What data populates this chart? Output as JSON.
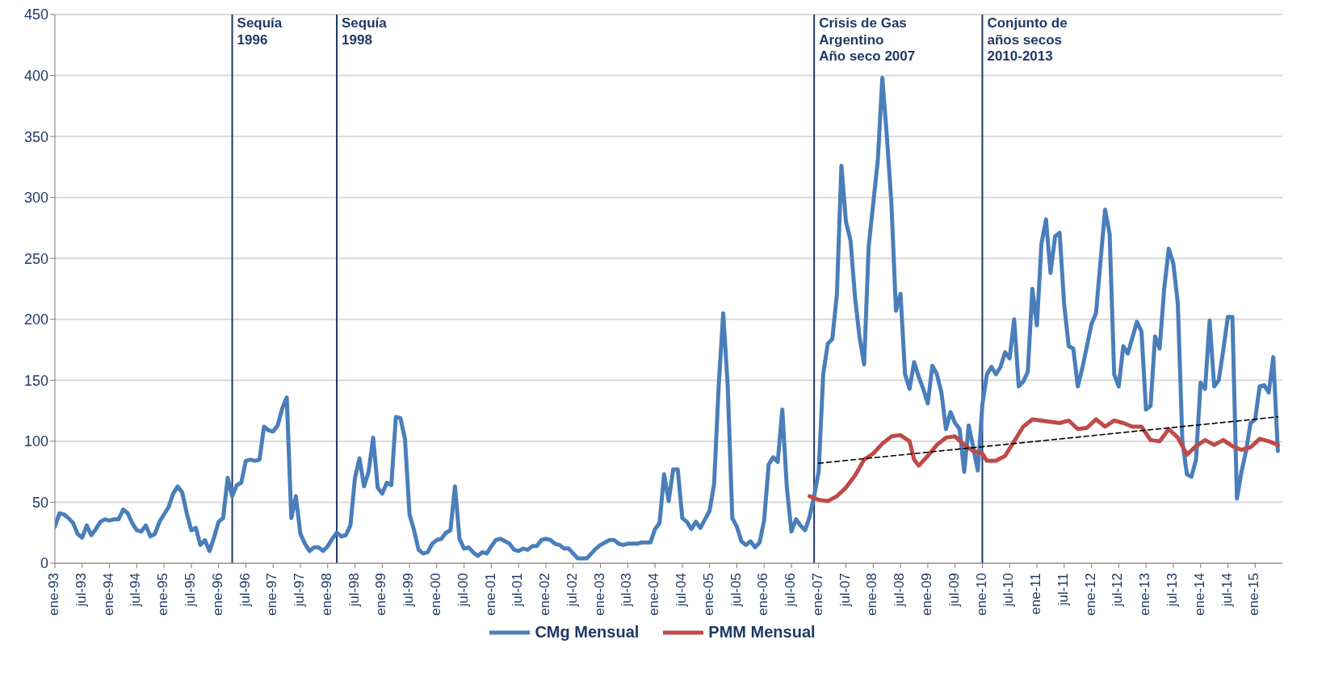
{
  "chart_data": {
    "type": "line",
    "ylim": [
      0,
      450
    ],
    "yticks": [
      0,
      50,
      100,
      150,
      200,
      250,
      300,
      350,
      400,
      450
    ],
    "xlim": [
      "1993-01",
      "2015-07"
    ],
    "xticks": [
      {
        "value": "1993-01",
        "label": "ene-93"
      },
      {
        "value": "1993-07",
        "label": "jul-93"
      },
      {
        "value": "1994-01",
        "label": "ene-94"
      },
      {
        "value": "1994-07",
        "label": "jul-94"
      },
      {
        "value": "1995-01",
        "label": "ene-95"
      },
      {
        "value": "1995-07",
        "label": "jul-95"
      },
      {
        "value": "1996-01",
        "label": "ene-96"
      },
      {
        "value": "1996-07",
        "label": "jul-96"
      },
      {
        "value": "1997-01",
        "label": "ene-97"
      },
      {
        "value": "1997-07",
        "label": "jul-97"
      },
      {
        "value": "1998-01",
        "label": "ene-98"
      },
      {
        "value": "1998-07",
        "label": "jul-98"
      },
      {
        "value": "1999-01",
        "label": "ene-99"
      },
      {
        "value": "1999-07",
        "label": "jul-99"
      },
      {
        "value": "2000-01",
        "label": "ene-00"
      },
      {
        "value": "2000-07",
        "label": "jul-00"
      },
      {
        "value": "2001-01",
        "label": "ene-01"
      },
      {
        "value": "2001-07",
        "label": "jul-01"
      },
      {
        "value": "2002-01",
        "label": "ene-02"
      },
      {
        "value": "2002-07",
        "label": "jul-02"
      },
      {
        "value": "2003-01",
        "label": "ene-03"
      },
      {
        "value": "2003-07",
        "label": "jul-03"
      },
      {
        "value": "2004-01",
        "label": "ene-04"
      },
      {
        "value": "2004-07",
        "label": "jul-04"
      },
      {
        "value": "2005-01",
        "label": "ene-05"
      },
      {
        "value": "2005-07",
        "label": "jul-05"
      },
      {
        "value": "2006-01",
        "label": "ene-06"
      },
      {
        "value": "2006-07",
        "label": "jul-06"
      },
      {
        "value": "2007-01",
        "label": "ene-07"
      },
      {
        "value": "2007-07",
        "label": "jul-07"
      },
      {
        "value": "2008-01",
        "label": "ene-08"
      },
      {
        "value": "2008-07",
        "label": "jul-08"
      },
      {
        "value": "2009-01",
        "label": "ene-09"
      },
      {
        "value": "2009-07",
        "label": "jul-09"
      },
      {
        "value": "2010-01",
        "label": "ene-10"
      },
      {
        "value": "2010-07",
        "label": "jul-10"
      },
      {
        "value": "2011-01",
        "label": "ene-11"
      },
      {
        "value": "2011-07",
        "label": "jul-11"
      },
      {
        "value": "2012-01",
        "label": "ene-12"
      },
      {
        "value": "2012-07",
        "label": "jul-12"
      },
      {
        "value": "2013-01",
        "label": "ene-13"
      },
      {
        "value": "2013-07",
        "label": "jul-13"
      },
      {
        "value": "2014-01",
        "label": "ene-14"
      },
      {
        "value": "2014-07",
        "label": "jul-14"
      },
      {
        "value": "2015-01",
        "label": "ene-15"
      }
    ],
    "grid": "y",
    "legend": "bottom",
    "line_style": "solid",
    "marker": "none",
    "series": [
      {
        "name": "CMg Mensual",
        "color": "#4a7ebb",
        "x": [
          "1993-01",
          "1993-02",
          "1993-03",
          "1993-04",
          "1993-05",
          "1993-06",
          "1993-07",
          "1993-08",
          "1993-09",
          "1993-10",
          "1993-11",
          "1993-12",
          "1994-01",
          "1994-02",
          "1994-03",
          "1994-04",
          "1994-05",
          "1994-06",
          "1994-07",
          "1994-08",
          "1994-09",
          "1994-10",
          "1994-11",
          "1994-12",
          "1995-01",
          "1995-02",
          "1995-03",
          "1995-04",
          "1995-05",
          "1995-06",
          "1995-07",
          "1995-08",
          "1995-09",
          "1995-10",
          "1995-11",
          "1995-12",
          "1996-01",
          "1996-02",
          "1996-03",
          "1996-04",
          "1996-05",
          "1996-06",
          "1996-07",
          "1996-08",
          "1996-09",
          "1996-10",
          "1996-11",
          "1996-12",
          "1997-01",
          "1997-02",
          "1997-03",
          "1997-04",
          "1997-05",
          "1997-06",
          "1997-07",
          "1997-08",
          "1997-09",
          "1997-10",
          "1997-11",
          "1997-12",
          "1998-01",
          "1998-02",
          "1998-03",
          "1998-04",
          "1998-05",
          "1998-06",
          "1998-07",
          "1998-08",
          "1998-09",
          "1998-10",
          "1998-11",
          "1998-12",
          "1999-01",
          "1999-02",
          "1999-03",
          "1999-04",
          "1999-05",
          "1999-06",
          "1999-07",
          "1999-08",
          "1999-09",
          "1999-10",
          "1999-11",
          "1999-12",
          "2000-01",
          "2000-02",
          "2000-03",
          "2000-04",
          "2000-05",
          "2000-06",
          "2000-07",
          "2000-08",
          "2000-09",
          "2000-10",
          "2000-11",
          "2000-12",
          "2001-01",
          "2001-02",
          "2001-03",
          "2001-04",
          "2001-05",
          "2001-06",
          "2001-07",
          "2001-08",
          "2001-09",
          "2001-10",
          "2001-11",
          "2001-12",
          "2002-01",
          "2002-02",
          "2002-03",
          "2002-04",
          "2002-05",
          "2002-06",
          "2002-07",
          "2002-08",
          "2002-09",
          "2002-10",
          "2002-11",
          "2002-12",
          "2003-01",
          "2003-02",
          "2003-03",
          "2003-04",
          "2003-05",
          "2003-06",
          "2003-07",
          "2003-08",
          "2003-09",
          "2003-10",
          "2003-11",
          "2003-12",
          "2004-01",
          "2004-02",
          "2004-03",
          "2004-04",
          "2004-05",
          "2004-06",
          "2004-07",
          "2004-08",
          "2004-09",
          "2004-10",
          "2004-11",
          "2004-12",
          "2005-01",
          "2005-02",
          "2005-03",
          "2005-04",
          "2005-05",
          "2005-06",
          "2005-07",
          "2005-08",
          "2005-09",
          "2005-10",
          "2005-11",
          "2005-12",
          "2006-01",
          "2006-02",
          "2006-03",
          "2006-04",
          "2006-05",
          "2006-06",
          "2006-07",
          "2006-08",
          "2006-09",
          "2006-10",
          "2006-11",
          "2006-12",
          "2007-01",
          "2007-02",
          "2007-03",
          "2007-04",
          "2007-05",
          "2007-06",
          "2007-07",
          "2007-08",
          "2007-09",
          "2007-10",
          "2007-11",
          "2007-12",
          "2008-01",
          "2008-02",
          "2008-03",
          "2008-04",
          "2008-05",
          "2008-06",
          "2008-07",
          "2008-08",
          "2008-09",
          "2008-10",
          "2008-11",
          "2008-12",
          "2009-01",
          "2009-02",
          "2009-03",
          "2009-04",
          "2009-05",
          "2009-06",
          "2009-07",
          "2009-08",
          "2009-09",
          "2009-10",
          "2009-11",
          "2009-12",
          "2010-01",
          "2010-02",
          "2010-03",
          "2010-04",
          "2010-05",
          "2010-06",
          "2010-07",
          "2010-08",
          "2010-09",
          "2010-10",
          "2010-11",
          "2010-12",
          "2011-01",
          "2011-02",
          "2011-03",
          "2011-04",
          "2011-05",
          "2011-06",
          "2011-07",
          "2011-08",
          "2011-09",
          "2011-10",
          "2011-11",
          "2011-12",
          "2012-01",
          "2012-02",
          "2012-03",
          "2012-04",
          "2012-05",
          "2012-06",
          "2012-07",
          "2012-08",
          "2012-09",
          "2012-10",
          "2012-11",
          "2012-12",
          "2013-01",
          "2013-02",
          "2013-03",
          "2013-04",
          "2013-05",
          "2013-06",
          "2013-07",
          "2013-08",
          "2013-09",
          "2013-10",
          "2013-11",
          "2013-12",
          "2014-01",
          "2014-02",
          "2014-03",
          "2014-04",
          "2014-05",
          "2014-06",
          "2014-07",
          "2014-08",
          "2014-09",
          "2014-10",
          "2014-11",
          "2014-12",
          "2015-01",
          "2015-02",
          "2015-03",
          "2015-04",
          "2015-05",
          "2015-06"
        ],
        "values": [
          30,
          41,
          40,
          37,
          33,
          24,
          21,
          31,
          23,
          28,
          34,
          36,
          35,
          36,
          36,
          44,
          41,
          33,
          27,
          26,
          31,
          22,
          24,
          34,
          40,
          46,
          57,
          63,
          58,
          41,
          27,
          29,
          15,
          19,
          10,
          21,
          34,
          37,
          70,
          55,
          64,
          66,
          84,
          85,
          84,
          85,
          112,
          109,
          108,
          113,
          127,
          136,
          37,
          55,
          24,
          16,
          10,
          13,
          13,
          10,
          14,
          20,
          25,
          22,
          23,
          31,
          70,
          86,
          63,
          75,
          103,
          62,
          57,
          66,
          64,
          120,
          119,
          102,
          40,
          27,
          11,
          8,
          9,
          16,
          19,
          20,
          25,
          27,
          63,
          20,
          12,
          13,
          9,
          6,
          9,
          8,
          14,
          19,
          20,
          18,
          16,
          11,
          10,
          12,
          11,
          14,
          14,
          19,
          20,
          19,
          16,
          15,
          12,
          12,
          8,
          4,
          4,
          4,
          8,
          12,
          15,
          17,
          19,
          19,
          16,
          15,
          16,
          16,
          16,
          17,
          17,
          17,
          28,
          33,
          73,
          51,
          77,
          77,
          37,
          34,
          28,
          34,
          29,
          36,
          43,
          65,
          145,
          205,
          145,
          37,
          30,
          18,
          15,
          18,
          13,
          17,
          35,
          81,
          87,
          83,
          126,
          62,
          26,
          36,
          31,
          27,
          38,
          55,
          75,
          155,
          180,
          184,
          220,
          326,
          280,
          265,
          218,
          185,
          163,
          260,
          295,
          330,
          398,
          350,
          295,
          207,
          221,
          155,
          143,
          165,
          153,
          143,
          131,
          162,
          155,
          140,
          110,
          124,
          115,
          110,
          75,
          113,
          95,
          76,
          130,
          155,
          161,
          155,
          161,
          173,
          168,
          200,
          145,
          149,
          157,
          225,
          195,
          262,
          282,
          238,
          268,
          271,
          212,
          178,
          176,
          145,
          160,
          178,
          196,
          205,
          248,
          290,
          270,
          155,
          145,
          178,
          172,
          185,
          198,
          190,
          126,
          129,
          186,
          176,
          225,
          258,
          246,
          213,
          100,
          73,
          71,
          85,
          148,
          143,
          199,
          145,
          150,
          175,
          202,
          202,
          53,
          75,
          92,
          115,
          118,
          145,
          146,
          140,
          169,
          92
        ]
      },
      {
        "name": "PMM Mensual",
        "color": "#be4b48",
        "x": [
          "2006-11",
          "2007-01",
          "2007-03",
          "2007-05",
          "2007-07",
          "2007-09",
          "2007-11",
          "2008-01",
          "2008-03",
          "2008-05",
          "2008-07",
          "2008-09",
          "2008-10",
          "2008-11",
          "2009-01",
          "2009-03",
          "2009-05",
          "2009-07",
          "2009-09",
          "2009-11",
          "2010-01",
          "2010-02",
          "2010-04",
          "2010-06",
          "2010-08",
          "2010-10",
          "2010-12",
          "2011-02",
          "2011-04",
          "2011-06",
          "2011-08",
          "2011-10",
          "2011-12",
          "2012-02",
          "2012-04",
          "2012-06",
          "2012-08",
          "2012-10",
          "2012-12",
          "2013-02",
          "2013-04",
          "2013-06",
          "2013-08",
          "2013-10",
          "2013-12",
          "2014-02",
          "2014-04",
          "2014-06",
          "2014-08",
          "2014-10",
          "2014-12",
          "2015-02",
          "2015-04",
          "2015-06"
        ],
        "values": [
          55,
          52,
          51,
          55,
          62,
          72,
          85,
          90,
          98,
          104,
          105,
          100,
          85,
          80,
          88,
          97,
          103,
          104,
          97,
          92,
          90,
          84,
          84,
          88,
          100,
          112,
          118,
          117,
          116,
          115,
          117,
          110,
          111,
          118,
          112,
          117,
          115,
          112,
          112,
          101,
          100,
          110,
          103,
          89,
          96,
          101,
          97,
          101,
          96,
          93,
          95,
          102,
          100,
          97
        ]
      },
      {
        "type": "line",
        "color": "#000000",
        "line_style": "dashed",
        "x": [
          "2007-01",
          "2015-06"
        ],
        "values": [
          82,
          120
        ]
      }
    ],
    "ref_lines": [
      {
        "axis": "x",
        "value": "1996-04",
        "label": "Sequía\n1996",
        "color": "#1f3864"
      },
      {
        "axis": "x",
        "value": "1998-03",
        "label": "Sequía\n1998",
        "color": "#1f3864"
      },
      {
        "axis": "x",
        "value": "2006-12",
        "label": "Crisis de Gas\nArgentino\nAño seco 2007",
        "color": "#1f3864"
      },
      {
        "axis": "x",
        "value": "2010-01",
        "label": "Conjunto de\naños secos\n2010-2013",
        "color": "#1f3864"
      }
    ]
  }
}
